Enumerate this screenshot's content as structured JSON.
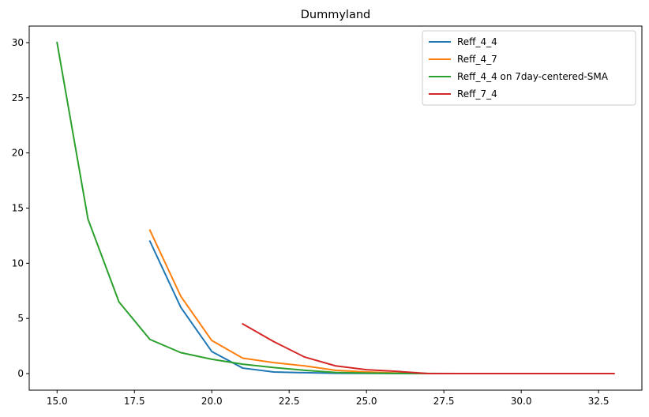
{
  "chart_data": {
    "type": "line",
    "title": "Dummyland",
    "xlabel": "",
    "ylabel": "",
    "xlim": [
      14.1,
      33.9
    ],
    "ylim": [
      -1.5,
      31.5
    ],
    "xticks": [
      15.0,
      17.5,
      20.0,
      22.5,
      25.0,
      27.5,
      30.0,
      32.5
    ],
    "xtick_labels": [
      "15.0",
      "17.5",
      "20.0",
      "22.5",
      "25.0",
      "27.5",
      "30.0",
      "32.5"
    ],
    "yticks": [
      0,
      5,
      10,
      15,
      20,
      25,
      30
    ],
    "ytick_labels": [
      "0",
      "5",
      "10",
      "15",
      "20",
      "25",
      "30"
    ],
    "grid": false,
    "legend_position": "top-right",
    "series": [
      {
        "name": "Reff_4_4",
        "color": "#1f77b4",
        "x": [
          18,
          19,
          20,
          21,
          22,
          23,
          24,
          25,
          26,
          27,
          28,
          29,
          30
        ],
        "y": [
          12.0,
          6.0,
          2.0,
          0.5,
          0.15,
          0.08,
          0.03,
          0.02,
          0.01,
          0.0,
          0.0,
          0.0,
          0.0
        ]
      },
      {
        "name": "Reff_4_7",
        "color": "#ff7f0e",
        "x": [
          18,
          19,
          20,
          21,
          22,
          23,
          24,
          25,
          26,
          27,
          28,
          29,
          30
        ],
        "y": [
          13.0,
          7.0,
          3.0,
          1.4,
          1.0,
          0.7,
          0.3,
          0.15,
          0.05,
          0.0,
          0.0,
          0.0,
          0.0
        ]
      },
      {
        "name": "Reff_4_4 on 7day-centered-SMA",
        "color": "#2ca02c",
        "x": [
          15,
          16,
          17,
          18,
          19,
          20,
          21,
          22,
          23,
          24,
          25,
          26,
          27,
          28,
          29,
          30
        ],
        "y": [
          30.0,
          14.0,
          6.5,
          3.1,
          1.9,
          1.3,
          0.85,
          0.55,
          0.3,
          0.1,
          0.05,
          0.02,
          0.01,
          0.0,
          0.0,
          0.0
        ]
      },
      {
        "name": "Reff_7_4",
        "color": "#d62728",
        "x": [
          21,
          22,
          23,
          24,
          25,
          26,
          27,
          28,
          29,
          30,
          31,
          32,
          33
        ],
        "y": [
          4.5,
          2.9,
          1.5,
          0.7,
          0.35,
          0.2,
          0.0,
          0.0,
          0.0,
          0.0,
          0.0,
          0.0,
          0.0
        ]
      }
    ]
  }
}
